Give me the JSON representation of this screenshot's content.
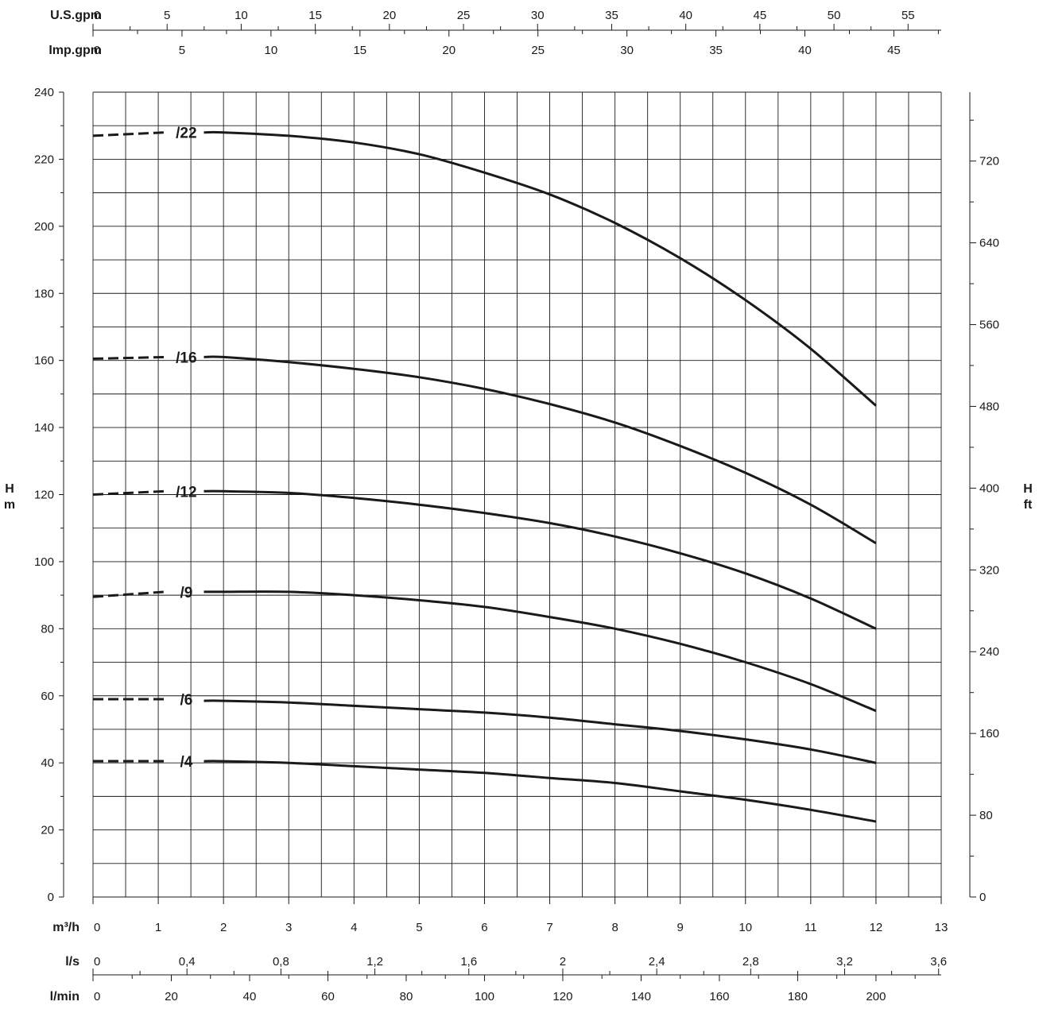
{
  "chart_data": {
    "type": "line",
    "title": "",
    "x_axes": {
      "us_gpm": {
        "label": "U.S.gpm",
        "ticks": [
          "0",
          "5",
          "10",
          "15",
          "20",
          "25",
          "30",
          "35",
          "40",
          "45",
          "50",
          "55"
        ]
      },
      "imp_gpm": {
        "label": "Imp.gpm",
        "ticks": [
          "0",
          "5",
          "10",
          "15",
          "20",
          "25",
          "30",
          "35",
          "40",
          "45"
        ]
      },
      "m3h": {
        "label": "m³/h",
        "ticks": [
          "0",
          "1",
          "2",
          "3",
          "4",
          "5",
          "6",
          "7",
          "8",
          "9",
          "10",
          "11",
          "12",
          "13"
        ],
        "xlim": [
          0,
          13
        ]
      },
      "ls": {
        "label": "l/s",
        "ticks": [
          "0",
          "0,4",
          "0,8",
          "1,2",
          "1,6",
          "2",
          "2,4",
          "2,8",
          "3,2",
          "3,6"
        ]
      },
      "lmin": {
        "label": "l/min",
        "ticks": [
          "0",
          "20",
          "40",
          "60",
          "80",
          "100",
          "120",
          "140",
          "160",
          "180",
          "200"
        ]
      }
    },
    "y_axes": {
      "left": {
        "label_top": "H",
        "label_bottom": "m",
        "ticks": [
          "0",
          "20",
          "40",
          "60",
          "80",
          "100",
          "120",
          "140",
          "160",
          "180",
          "200",
          "220",
          "240"
        ],
        "ylim": [
          0,
          240
        ]
      },
      "right": {
        "label_top": "H",
        "label_bottom": "ft",
        "ticks": [
          "0",
          "80",
          "160",
          "240",
          "320",
          "400",
          "480",
          "560",
          "640",
          "720"
        ]
      }
    },
    "grid": true,
    "series": [
      {
        "name": "/22",
        "dashed_x": [
          0,
          1.1
        ],
        "dashed_y": [
          227,
          228
        ],
        "x": [
          1.7,
          2,
          3,
          4,
          5,
          6,
          7,
          8,
          9,
          10,
          11,
          12
        ],
        "y": [
          228,
          228,
          227,
          225,
          221.5,
          216,
          209.5,
          201,
          190.5,
          178,
          163.5,
          146.5
        ]
      },
      {
        "name": "/16",
        "dashed_x": [
          0,
          1.1
        ],
        "dashed_y": [
          160.5,
          161
        ],
        "x": [
          1.7,
          2,
          3,
          4,
          5,
          6,
          7,
          8,
          9,
          10,
          11,
          12
        ],
        "y": [
          161,
          161,
          159.5,
          157.5,
          155,
          151.5,
          147,
          141.5,
          134.5,
          126.5,
          117,
          105.5
        ]
      },
      {
        "name": "/12",
        "dashed_x": [
          0,
          1.1
        ],
        "dashed_y": [
          120,
          121
        ],
        "x": [
          1.7,
          2,
          3,
          4,
          5,
          6,
          7,
          8,
          9,
          10,
          11,
          12
        ],
        "y": [
          121,
          121,
          120.5,
          119,
          117,
          114.5,
          111.5,
          107.5,
          102.5,
          96.5,
          89,
          80
        ]
      },
      {
        "name": "/9",
        "dashed_x": [
          0,
          1.1
        ],
        "dashed_y": [
          89.5,
          91
        ],
        "x": [
          1.7,
          2,
          3,
          4,
          5,
          6,
          7,
          8,
          9,
          10,
          11,
          12
        ],
        "y": [
          91,
          91,
          91,
          90,
          88.5,
          86.5,
          83.5,
          80,
          75.5,
          70,
          63.5,
          55.5
        ]
      },
      {
        "name": "/6",
        "dashed_x": [
          0,
          1.1
        ],
        "dashed_y": [
          59,
          59
        ],
        "x": [
          1.7,
          2,
          3,
          4,
          5,
          6,
          7,
          8,
          9,
          10,
          11,
          12
        ],
        "y": [
          58.5,
          58.5,
          58,
          57,
          56,
          55,
          53.5,
          51.5,
          49.5,
          47,
          44,
          40
        ]
      },
      {
        "name": "/4",
        "dashed_x": [
          0,
          1.1
        ],
        "dashed_y": [
          40.5,
          40.5
        ],
        "x": [
          1.7,
          2,
          3,
          4,
          5,
          6,
          7,
          8,
          9,
          10,
          11,
          12
        ],
        "y": [
          40.5,
          40.5,
          40,
          39,
          38,
          37,
          35.5,
          34,
          31.5,
          29,
          26,
          22.5
        ]
      }
    ]
  }
}
